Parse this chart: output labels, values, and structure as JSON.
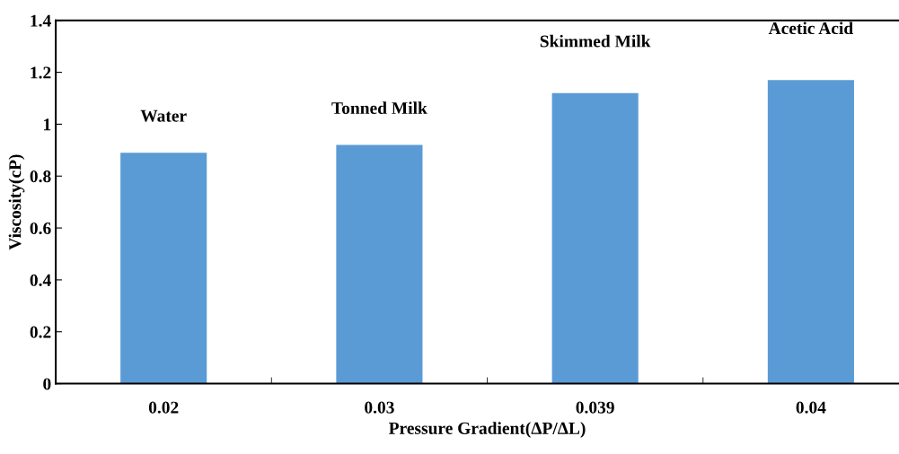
{
  "chart_data": {
    "type": "bar",
    "xlabel": "Pressure Gradient(ΔP/ΔL)",
    "ylabel": "Viscosity(cP)",
    "categories": [
      "0.02",
      "0.03",
      "0.039",
      "0.04"
    ],
    "values": [
      0.89,
      0.92,
      1.12,
      1.17
    ],
    "color": "#5b9bd5",
    "ylim": [
      0,
      1.4
    ],
    "yticks": [
      0,
      0.2,
      0.4,
      0.6,
      0.8,
      1,
      1.2,
      1.4
    ],
    "grid": false,
    "annotations": [
      "Water",
      "Tonned Milk",
      "Skimmed Milk",
      "Acetic Acid"
    ]
  }
}
